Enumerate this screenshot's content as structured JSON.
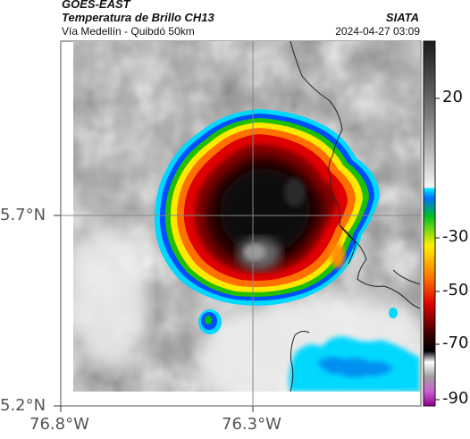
{
  "header": {
    "satellite": "GOES-EAST",
    "product": "Temperatura de Brillo CH13",
    "region": "Vía Medellín - Quibdó 50km",
    "org": "SIATA",
    "datetime": "2024-04-27 03:09"
  },
  "axes": {
    "lat_ticks": [
      "5.7°N",
      "5.2°N"
    ],
    "lon_ticks": [
      "76.8°W",
      "76.3°W"
    ]
  },
  "colorbar": {
    "ticks": [
      "20",
      "-30",
      "-50",
      "-70",
      "-90"
    ],
    "colors": [
      "#202020",
      "#808080",
      "#ffffff",
      "#00e5ff",
      "#0050ff",
      "#00c000",
      "#ffff00",
      "#ff8000",
      "#ff0000",
      "#600000",
      "#000000",
      "#a000a0"
    ]
  }
}
